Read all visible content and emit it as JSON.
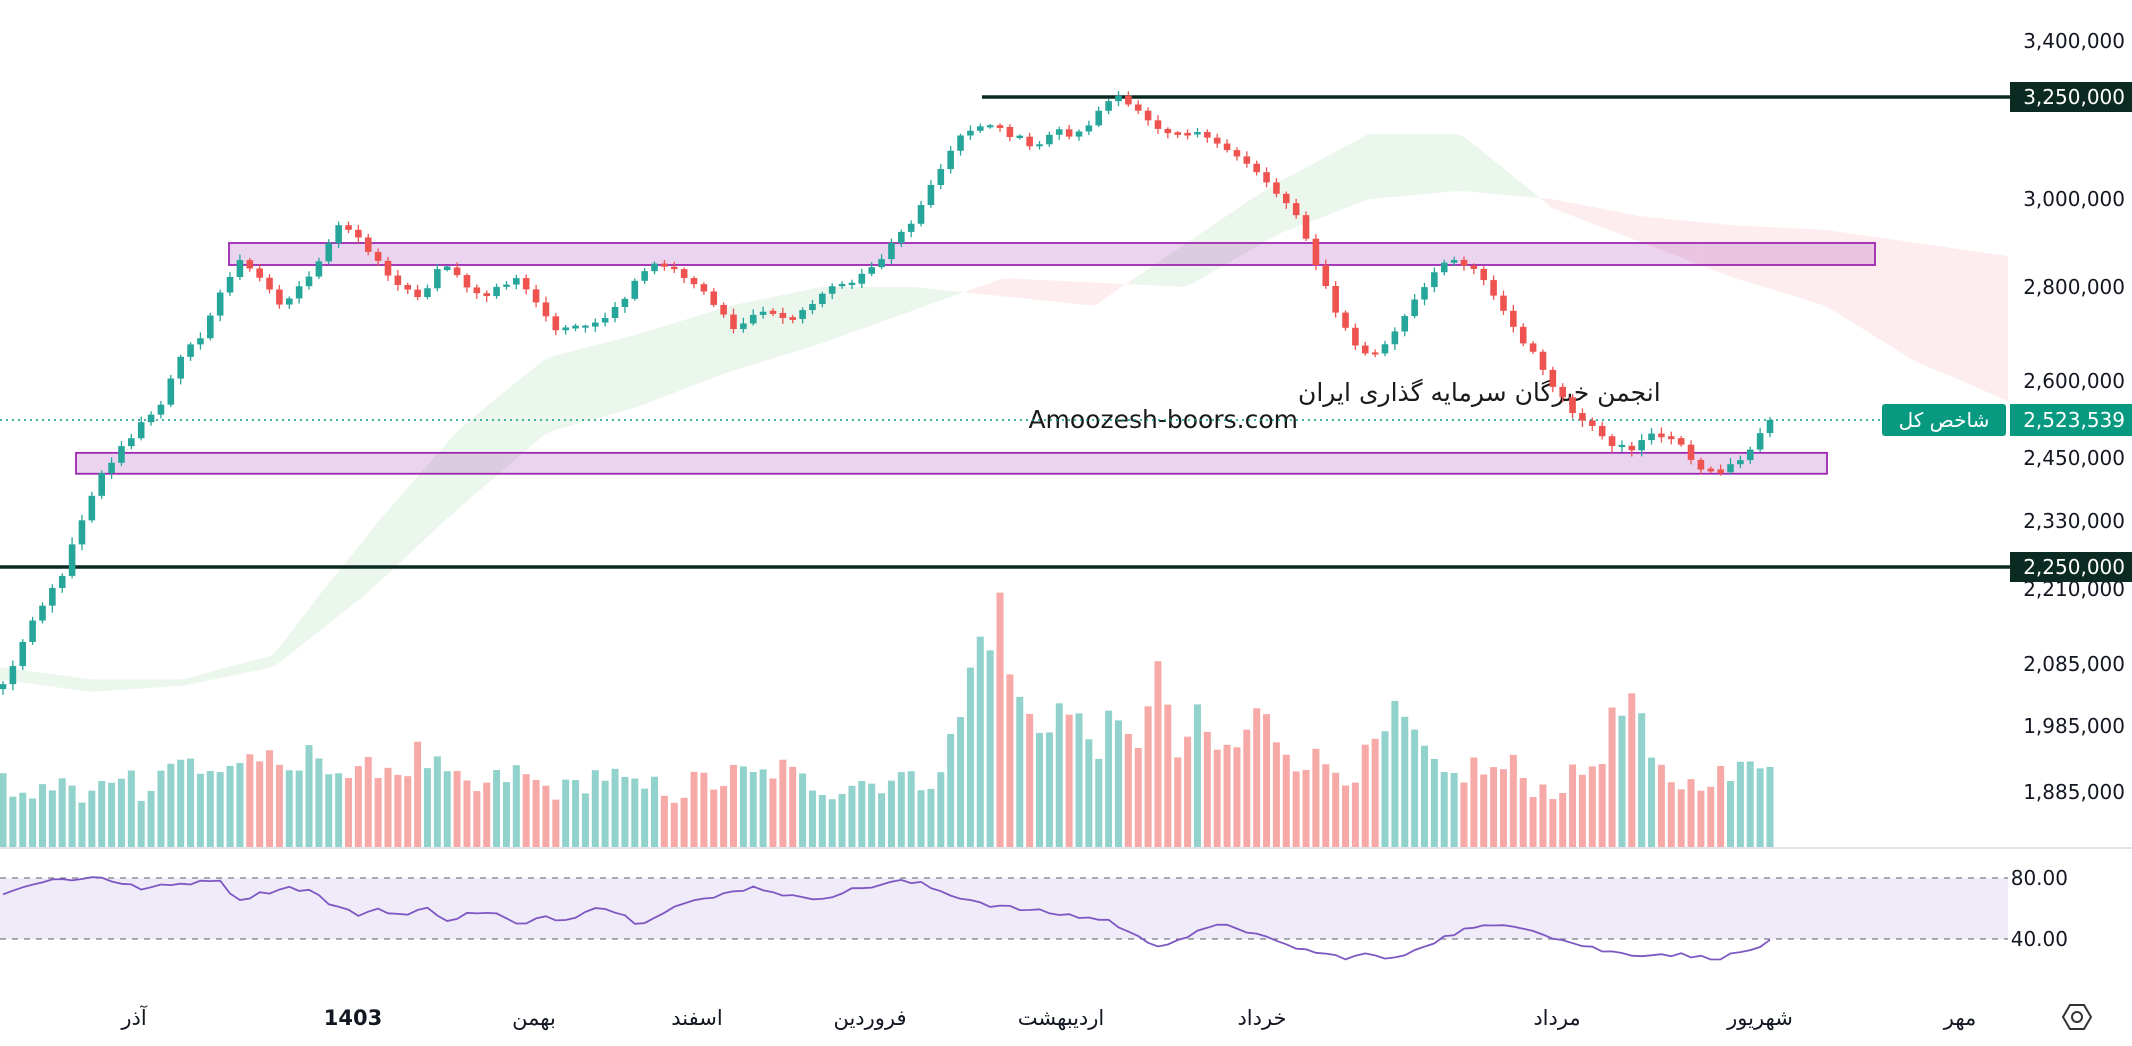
{
  "chart_data": {
    "type": "candlestick",
    "series": [
      {
        "name": "شاخص کل",
        "last_value": 2523539
      },
      {
        "name": "",
        "kind": "volume"
      },
      {
        "name": "",
        "kind": "rsi",
        "levels": [
          80.0,
          40.0
        ]
      }
    ],
    "watermark": {
      "line1": "انجمن خبرگان سرمایه گذاری ایران",
      "line2": "Amoozesh-boors.com"
    },
    "price_axis": {
      "ticks": [
        "3,400,000",
        "3,000,000",
        "2,800,000",
        "2,600,000",
        "2,450,000",
        "2,330,000",
        "2,210,000",
        "2,085,000",
        "1,985,000",
        "1,885,000"
      ],
      "tick_values": [
        3400000,
        3000000,
        2800000,
        2600000,
        2450000,
        2330000,
        2210000,
        2085000,
        1985000,
        1885000
      ]
    },
    "levels": [
      {
        "value": 3250000,
        "label": "3,250,000"
      },
      {
        "value": 2250000,
        "label": "2,250,000"
      }
    ],
    "current": {
      "label": "شاخص کل",
      "value_label": "2,523,539",
      "value": 2523539
    },
    "zones": [
      {
        "low": 2850000,
        "high": 2900000
      },
      {
        "low": 2420000,
        "high": 2460000
      }
    ],
    "rsi_axis": {
      "ticks": [
        "80.00",
        "40.00"
      ]
    },
    "x_labels": [
      "آذر",
      "1403",
      "بهمن",
      "اسفند",
      "فروردین",
      "اردیبهشت",
      "خرداد",
      "مرداد",
      "شهریور",
      "مهر"
    ],
    "colors": {
      "up": "#26a69a",
      "down": "#ef5350",
      "rsi": "#7e57c2",
      "zone": "#9c27b0",
      "level": "#0b2a22",
      "current": "#089981"
    },
    "ohlc_keypoints": [
      {
        "c": 2050000
      },
      {
        "c": 2120000
      },
      {
        "c": 2180000
      },
      {
        "c": 2240000
      },
      {
        "c": 2330000
      },
      {
        "c": 2420000
      },
      {
        "c": 2470000
      },
      {
        "c": 2520000
      },
      {
        "c": 2560000
      },
      {
        "c": 2650000
      },
      {
        "c": 2700000
      },
      {
        "c": 2790000
      },
      {
        "c": 2870000
      },
      {
        "c": 2810000
      },
      {
        "c": 2760000
      },
      {
        "c": 2800000
      },
      {
        "c": 2870000
      },
      {
        "c": 2950000
      },
      {
        "c": 2900000
      },
      {
        "c": 2850000
      },
      {
        "c": 2800000
      },
      {
        "c": 2770000
      },
      {
        "c": 2850000
      },
      {
        "c": 2820000
      },
      {
        "c": 2780000
      },
      {
        "c": 2800000
      },
      {
        "c": 2820000
      },
      {
        "c": 2760000
      },
      {
        "c": 2700000
      },
      {
        "c": 2720000
      },
      {
        "c": 2730000
      },
      {
        "c": 2760000
      },
      {
        "c": 2830000
      },
      {
        "c": 2860000
      },
      {
        "c": 2830000
      },
      {
        "c": 2800000
      },
      {
        "c": 2750000
      },
      {
        "c": 2710000
      },
      {
        "c": 2750000
      },
      {
        "c": 2740000
      },
      {
        "c": 2730000
      },
      {
        "c": 2780000
      },
      {
        "c": 2800000
      },
      {
        "c": 2820000
      },
      {
        "c": 2850000
      },
      {
        "c": 2910000
      },
      {
        "c": 2960000
      },
      {
        "c": 3050000
      },
      {
        "c": 3150000
      },
      {
        "c": 3170000
      },
      {
        "c": 3180000
      },
      {
        "c": 3150000
      },
      {
        "c": 3130000
      },
      {
        "c": 3170000
      },
      {
        "c": 3150000
      },
      {
        "c": 3200000
      },
      {
        "c": 3260000
      },
      {
        "c": 3230000
      },
      {
        "c": 3170000
      },
      {
        "c": 3150000
      },
      {
        "c": 3160000
      },
      {
        "c": 3150000
      },
      {
        "c": 3110000
      },
      {
        "c": 3070000
      },
      {
        "c": 3020000
      },
      {
        "c": 2970000
      },
      {
        "c": 2870000
      },
      {
        "c": 2760000
      },
      {
        "c": 2680000
      },
      {
        "c": 2650000
      },
      {
        "c": 2700000
      },
      {
        "c": 2770000
      },
      {
        "c": 2830000
      },
      {
        "c": 2860000
      },
      {
        "c": 2840000
      },
      {
        "c": 2790000
      },
      {
        "c": 2720000
      },
      {
        "c": 2660000
      },
      {
        "c": 2600000
      },
      {
        "c": 2540000
      },
      {
        "c": 2520000
      },
      {
        "c": 2480000
      },
      {
        "c": 2460000
      },
      {
        "c": 2500000
      },
      {
        "c": 2490000
      },
      {
        "c": 2450000
      },
      {
        "c": 2420000
      },
      {
        "c": 2430000
      },
      {
        "c": 2470000
      },
      {
        "c": 2523539
      }
    ],
    "volume_keypoints": [
      20,
      16,
      18,
      22,
      14,
      20,
      26,
      18,
      25,
      30,
      22,
      26,
      28,
      30,
      22,
      26,
      32,
      24,
      22,
      28,
      24,
      30,
      24,
      20,
      18,
      22,
      24,
      20,
      18,
      20,
      24,
      22,
      18,
      20,
      16,
      22,
      20,
      24,
      22,
      26,
      22,
      20,
      18,
      22,
      20,
      24,
      20,
      24,
      36,
      62,
      80,
      48,
      38,
      46,
      40,
      34,
      38,
      30,
      62,
      28,
      40,
      32,
      30,
      42,
      38,
      30,
      28,
      26,
      24,
      30,
      40,
      36,
      24,
      22,
      26,
      24,
      26,
      20,
      18,
      22,
      26,
      38,
      48,
      26,
      22,
      20,
      24,
      22,
      26,
      30
    ],
    "rsi_keypoints": [
      70,
      74,
      80,
      78,
      82,
      76,
      73,
      75,
      77,
      80,
      66,
      70,
      74,
      72,
      62,
      56,
      60,
      55,
      60,
      52,
      58,
      56,
      48,
      55,
      52,
      62,
      58,
      50,
      58,
      64,
      66,
      72,
      74,
      70,
      66,
      68,
      72,
      75,
      78,
      76,
      70,
      66,
      62,
      60,
      58,
      56,
      54,
      52,
      42,
      36,
      40,
      46,
      50,
      44,
      38,
      34,
      30,
      28,
      30,
      26,
      34,
      40,
      46,
      48,
      50,
      46,
      40,
      36,
      32,
      30,
      30,
      30,
      28,
      28,
      32,
      38
    ],
    "ichimoku_keypoints": [
      {
        "a": 2080000,
        "b": 2060000
      },
      {
        "a": 2060000,
        "b": 2040000
      },
      {
        "a": 2060000,
        "b": 2050000
      },
      {
        "a": 2100000,
        "b": 2080000
      },
      {
        "a": 2300000,
        "b": 2200000
      },
      {
        "a": 2500000,
        "b": 2350000
      },
      {
        "a": 2650000,
        "b": 2500000
      },
      {
        "a": 2700000,
        "b": 2550000
      },
      {
        "a": 2760000,
        "b": 2620000
      },
      {
        "a": 2800000,
        "b": 2680000
      },
      {
        "a": 2800000,
        "b": 2750000
      },
      {
        "a": 2780000,
        "b": 2820000
      },
      {
        "a": 2760000,
        "b": 2810000
      },
      {
        "a": 2900000,
        "b": 2800000
      },
      {
        "a": 3040000,
        "b": 2920000
      },
      {
        "a": 3160000,
        "b": 3000000
      },
      {
        "a": 3160000,
        "b": 3020000
      },
      {
        "a": 2980000,
        "b": 3000000
      },
      {
        "a": 2900000,
        "b": 2960000
      },
      {
        "a": 2820000,
        "b": 2940000
      },
      {
        "a": 2760000,
        "b": 2930000
      },
      {
        "a": 2640000,
        "b": 2900000
      },
      {
        "a": 2560000,
        "b": 2870000
      }
    ]
  }
}
